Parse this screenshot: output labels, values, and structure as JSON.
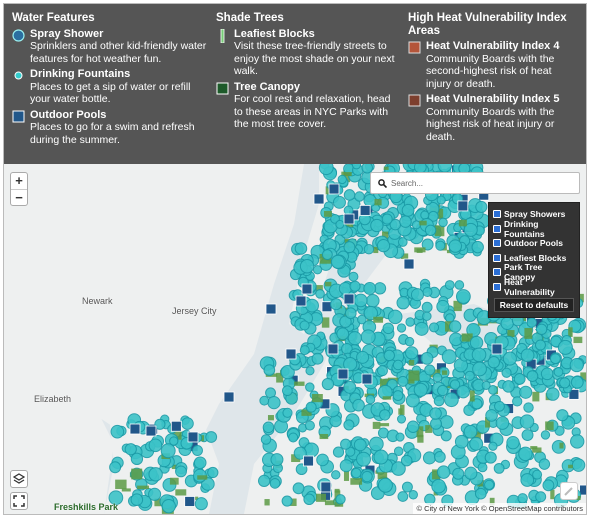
{
  "legend": {
    "sections": [
      {
        "title": "Water Features",
        "items": [
          {
            "label": "Spray Shower",
            "description": "Sprinklers and other kid-friendly water features for hot weather fun."
          },
          {
            "label": "Drinking Fountains",
            "description": "Places to get a sip of water or refill your water bottle."
          },
          {
            "label": "Outdoor Pools",
            "description": "Places to go for a swim and refresh during the summer."
          }
        ]
      },
      {
        "title": "Shade Trees",
        "items": [
          {
            "label": "Leafiest Blocks",
            "description": "Visit these tree-friendly streets to enjoy the most shade on your next walk."
          },
          {
            "label": "Tree Canopy",
            "description": "For cool rest and relaxation, head to these areas in NYC Parks with the most tree cover."
          }
        ]
      },
      {
        "title": "High Heat Vulnerability Index Areas",
        "items": [
          {
            "label": "Heat Vulnerability Index 4",
            "description": "Community Boards with the second-highest risk of heat injury or death."
          },
          {
            "label": "Heat Vulnerability Index 5",
            "description": "Community Boards with the highest risk of heat injury or death."
          }
        ]
      }
    ]
  },
  "zoom": {
    "in": "+",
    "out": "−"
  },
  "search": {
    "placeholder": "Search..."
  },
  "layers": {
    "items": [
      "Spray Showers",
      "Drinking Fountains",
      "Outdoor Pools",
      "Leafiest Blocks",
      "Park Tree Canopy",
      "Heat Vulnerability"
    ],
    "reset": "Reset to defaults"
  },
  "map_labels": [
    "Newark",
    "Jersey City",
    "Elizabeth",
    "Freshkills Park"
  ],
  "attribution": "© City of New York © OpenStreetMap contributors"
}
